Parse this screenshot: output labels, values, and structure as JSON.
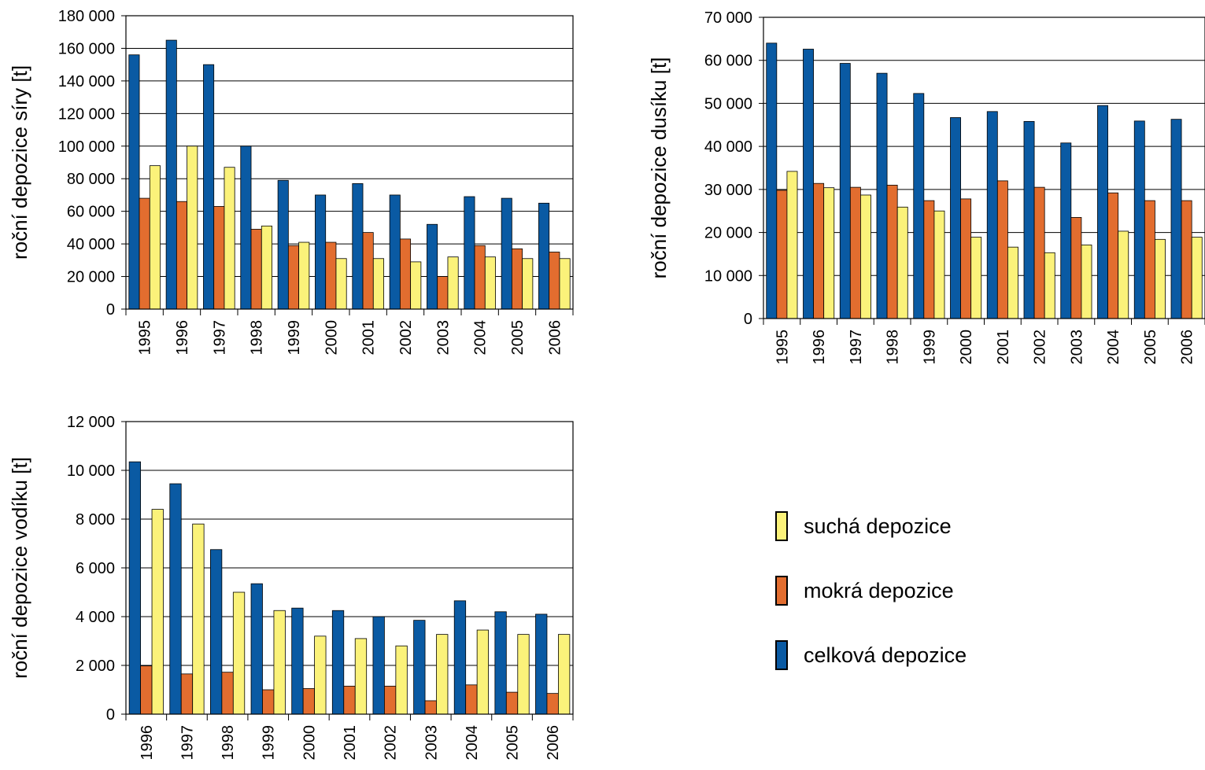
{
  "colors": {
    "celkova": "#0a5aa3",
    "mokra": "#e26d2f",
    "sucha": "#fbf27a"
  },
  "legend": [
    {
      "key": "sucha",
      "label": "suchá depozice"
    },
    {
      "key": "mokra",
      "label": "mokrá depozice"
    },
    {
      "key": "celkova",
      "label": "celková depozice"
    }
  ],
  "chart_data": [
    {
      "type": "bar",
      "xlabel": "",
      "ylabel": "roční depozice síry [t]",
      "ylim": [
        0,
        180000
      ],
      "yticks": [
        0,
        20000,
        40000,
        60000,
        80000,
        100000,
        120000,
        140000,
        160000,
        180000
      ],
      "ytick_labels": [
        "0",
        "20 000",
        "40 000",
        "60 000",
        "80 000",
        "100 000",
        "120 000",
        "140 000",
        "160 000",
        "180 000"
      ],
      "grid": true,
      "categories": [
        "1995",
        "1996",
        "1997",
        "1998",
        "1999",
        "2000",
        "2001",
        "2002",
        "2003",
        "2004",
        "2005",
        "2006"
      ],
      "series": [
        {
          "name": "celková depozice",
          "key": "celkova",
          "values": [
            156000,
            165000,
            150000,
            100000,
            79000,
            70000,
            77000,
            70000,
            52000,
            69000,
            68000,
            65000
          ]
        },
        {
          "name": "mokrá depozice",
          "key": "mokra",
          "values": [
            68000,
            66000,
            63000,
            49000,
            39000,
            41000,
            47000,
            43000,
            20000,
            39000,
            37000,
            35000
          ]
        },
        {
          "name": "suchá depozice",
          "key": "sucha",
          "values": [
            88000,
            100000,
            87000,
            51000,
            41000,
            31000,
            31000,
            29000,
            32000,
            32000,
            31000,
            31000
          ]
        }
      ]
    },
    {
      "type": "bar",
      "xlabel": "",
      "ylabel": "roční depozice dusíku [t]",
      "ylim": [
        0,
        70000
      ],
      "yticks": [
        0,
        10000,
        20000,
        30000,
        40000,
        50000,
        60000,
        70000
      ],
      "ytick_labels": [
        "0",
        "10 000",
        "20 000",
        "30 000",
        "40 000",
        "50 000",
        "60 000",
        "70 000"
      ],
      "grid": true,
      "categories": [
        "1995",
        "1996",
        "1997",
        "1998",
        "1999",
        "2000",
        "2001",
        "2002",
        "2003",
        "2004",
        "2005",
        "2006"
      ],
      "series": [
        {
          "name": "celková depozice",
          "key": "celkova",
          "values": [
            64000,
            62600,
            59300,
            57000,
            52300,
            46700,
            48100,
            45800,
            40800,
            49500,
            45900,
            46300
          ]
        },
        {
          "name": "mokrá depozice",
          "key": "mokra",
          "values": [
            29800,
            31400,
            30500,
            31000,
            27400,
            27800,
            32000,
            30500,
            23500,
            29200,
            27400,
            27400
          ]
        },
        {
          "name": "suchá depozice",
          "key": "sucha",
          "values": [
            34200,
            30400,
            28700,
            25900,
            25000,
            18900,
            16600,
            15300,
            17100,
            20300,
            18400,
            18900
          ]
        }
      ]
    },
    {
      "type": "bar",
      "xlabel": "",
      "ylabel": "roční depozice vodíku [t]",
      "ylim": [
        0,
        12000
      ],
      "yticks": [
        0,
        2000,
        4000,
        6000,
        8000,
        10000,
        12000
      ],
      "ytick_labels": [
        "0",
        "2 000",
        "4 000",
        "6 000",
        "8 000",
        "10 000",
        "12 000"
      ],
      "grid": true,
      "categories": [
        "1996",
        "1997",
        "1998",
        "1999",
        "2000",
        "2001",
        "2002",
        "2003",
        "2004",
        "2005",
        "2006"
      ],
      "series": [
        {
          "name": "celková depozice",
          "key": "celkova",
          "values": [
            10350,
            9450,
            6750,
            5350,
            4350,
            4250,
            4000,
            3850,
            4650,
            4200,
            4100
          ]
        },
        {
          "name": "mokrá depozice",
          "key": "mokra",
          "values": [
            1980,
            1650,
            1720,
            1000,
            1050,
            1150,
            1150,
            550,
            1200,
            900,
            850
          ]
        },
        {
          "name": "suchá depozice",
          "key": "sucha",
          "values": [
            8400,
            7800,
            5000,
            4250,
            3200,
            3100,
            2800,
            3270,
            3450,
            3270,
            3270
          ]
        }
      ]
    }
  ]
}
